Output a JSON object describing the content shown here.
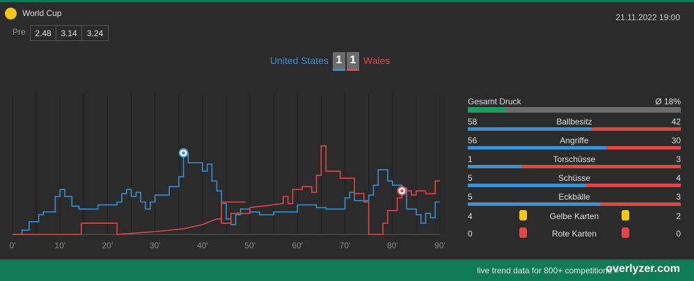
{
  "competition": {
    "name": "World Cup",
    "icon": "yellow-circle-icon"
  },
  "datetime": "21.11.2022 19:00",
  "odds": {
    "label": "Pre",
    "values": [
      "2.48",
      "3.14",
      "3.24"
    ]
  },
  "match": {
    "home": {
      "name": "United States",
      "score": "1",
      "color": "#3b8fd4"
    },
    "away": {
      "name": "Wales",
      "score": "1",
      "color": "#e04848"
    }
  },
  "chart_data": {
    "type": "line",
    "x_ticks": [
      "0'",
      "10'",
      "20'",
      "30'",
      "40'",
      "50'",
      "60'",
      "70'",
      "80'",
      "90'"
    ],
    "xlim": [
      0,
      90
    ],
    "ylim": [
      0,
      100
    ],
    "grid": "vertical",
    "series": [
      {
        "name": "United States",
        "color": "#3b8fd4",
        "points": [
          [
            0,
            0
          ],
          [
            2,
            0
          ],
          [
            2,
            3
          ],
          [
            3.5,
            3
          ],
          [
            3.5,
            9
          ],
          [
            5.5,
            9
          ],
          [
            5.5,
            14
          ],
          [
            6.5,
            14
          ],
          [
            6.5,
            16
          ],
          [
            9,
            16
          ],
          [
            9,
            27
          ],
          [
            10,
            27
          ],
          [
            10,
            32
          ],
          [
            11,
            32
          ],
          [
            11,
            27
          ],
          [
            12.5,
            27
          ],
          [
            12.5,
            20
          ],
          [
            14,
            20
          ],
          [
            14,
            18
          ],
          [
            18,
            18
          ],
          [
            18,
            21
          ],
          [
            22,
            21
          ],
          [
            22,
            23
          ],
          [
            23,
            23
          ],
          [
            23,
            29
          ],
          [
            24,
            29
          ],
          [
            24,
            32
          ],
          [
            25,
            32
          ],
          [
            25,
            27
          ],
          [
            26,
            27
          ],
          [
            26,
            30
          ],
          [
            27,
            30
          ],
          [
            27,
            23
          ],
          [
            28,
            23
          ],
          [
            28,
            18
          ],
          [
            29,
            18
          ],
          [
            29,
            23
          ],
          [
            30,
            23
          ],
          [
            30,
            28
          ],
          [
            33,
            28
          ],
          [
            33,
            34
          ],
          [
            35,
            34
          ],
          [
            35,
            41
          ],
          [
            36,
            41
          ],
          [
            36,
            58
          ],
          [
            37,
            58
          ],
          [
            37,
            51
          ],
          [
            40,
            51
          ],
          [
            40,
            45
          ],
          [
            41,
            45
          ],
          [
            41,
            50
          ],
          [
            42,
            50
          ],
          [
            42,
            38
          ],
          [
            43,
            38
          ],
          [
            43,
            31
          ],
          [
            44,
            31
          ],
          [
            44,
            22
          ],
          [
            45,
            22
          ],
          [
            45,
            11
          ],
          [
            46,
            11
          ],
          [
            46,
            7
          ],
          [
            47,
            7
          ],
          [
            47,
            14
          ],
          [
            48,
            14
          ],
          [
            48,
            18
          ],
          [
            50,
            18
          ],
          [
            50,
            16
          ],
          [
            52,
            16
          ],
          [
            52,
            14
          ],
          [
            55,
            14
          ],
          [
            55,
            16
          ],
          [
            60,
            16
          ],
          [
            60,
            21
          ],
          [
            64,
            21
          ],
          [
            64,
            19
          ],
          [
            66,
            19
          ],
          [
            66,
            18
          ],
          [
            70,
            18
          ],
          [
            70,
            26
          ],
          [
            71,
            26
          ],
          [
            71,
            30
          ],
          [
            72,
            30
          ],
          [
            72,
            24
          ],
          [
            75,
            24
          ],
          [
            75,
            28
          ],
          [
            76,
            28
          ],
          [
            76,
            35
          ],
          [
            77,
            35
          ],
          [
            77,
            46
          ],
          [
            79,
            46
          ],
          [
            79,
            38
          ],
          [
            80,
            38
          ],
          [
            80,
            35
          ],
          [
            82,
            35
          ],
          [
            82,
            33
          ],
          [
            83,
            33
          ],
          [
            83,
            18
          ],
          [
            85,
            18
          ],
          [
            85,
            14
          ],
          [
            86,
            14
          ],
          [
            86,
            8
          ],
          [
            87,
            8
          ],
          [
            87,
            15
          ],
          [
            88,
            15
          ],
          [
            88,
            12
          ],
          [
            89,
            12
          ],
          [
            89,
            23
          ],
          [
            90,
            23
          ]
        ]
      },
      {
        "name": "Wales",
        "color": "#e04848",
        "points": [
          [
            0,
            0
          ],
          [
            14.5,
            0
          ],
          [
            14.5,
            8
          ],
          [
            22,
            8
          ],
          [
            22,
            0
          ],
          [
            30,
            2
          ],
          [
            36,
            4
          ],
          [
            40,
            7
          ],
          [
            43,
            11
          ],
          [
            44,
            11
          ],
          [
            44,
            23
          ],
          [
            49,
            23
          ],
          [
            44,
            23
          ],
          [
            44,
            8
          ],
          [
            46,
            8
          ],
          [
            46,
            15
          ],
          [
            50,
            15
          ],
          [
            50,
            19
          ],
          [
            57,
            22
          ],
          [
            57,
            27
          ],
          [
            58,
            27
          ],
          [
            58,
            22
          ],
          [
            59,
            22
          ],
          [
            59,
            32
          ],
          [
            61,
            32
          ],
          [
            61,
            34
          ],
          [
            63,
            34
          ],
          [
            63,
            30
          ],
          [
            64,
            30
          ],
          [
            64,
            42
          ],
          [
            65,
            42
          ],
          [
            65,
            63
          ],
          [
            66,
            63
          ],
          [
            66,
            45
          ],
          [
            69,
            45
          ],
          [
            69,
            40
          ],
          [
            72,
            40
          ],
          [
            72,
            29
          ],
          [
            74,
            29
          ],
          [
            74,
            23
          ],
          [
            75,
            23
          ],
          [
            75,
            0
          ],
          [
            78,
            0
          ],
          [
            78,
            8
          ],
          [
            79,
            8
          ],
          [
            79,
            17
          ],
          [
            81,
            17
          ],
          [
            81,
            26
          ],
          [
            82,
            26
          ],
          [
            82,
            31
          ],
          [
            84,
            31
          ],
          [
            84,
            28
          ],
          [
            85,
            28
          ],
          [
            85,
            31
          ],
          [
            87,
            31
          ],
          [
            87,
            29
          ],
          [
            89,
            29
          ],
          [
            89,
            38
          ],
          [
            90,
            38
          ]
        ]
      }
    ],
    "goal_markers": [
      {
        "team": "United States",
        "minute": 36,
        "icon": "soccer-ball-icon"
      },
      {
        "team": "Wales",
        "minute": 82,
        "icon": "soccer-ball-icon"
      }
    ]
  },
  "stats": {
    "pressure": {
      "label": "Gesamt Druck",
      "value": "Ø 18%",
      "percent": 18
    },
    "rows": [
      {
        "name": "Ballbesitz",
        "home": "58",
        "away": "42"
      },
      {
        "name": "Angriffe",
        "home": "56",
        "away": "30"
      },
      {
        "name": "Torschüsse",
        "home": "1",
        "away": "3"
      },
      {
        "name": "Schüsse",
        "home": "5",
        "away": "4"
      },
      {
        "name": "Eckbälle",
        "home": "5",
        "away": "3"
      }
    ],
    "cards": [
      {
        "name": "Gelbe Karten",
        "home": "4",
        "away": "2",
        "color": "#f5c518",
        "icon": "yellow-card-icon"
      },
      {
        "name": "Rote Karten",
        "home": "0",
        "away": "0",
        "color": "#e04848",
        "icon": "red-card-icon"
      }
    ]
  },
  "footer": {
    "text": "live trend data for 800+ competitions »",
    "brand": "overlyzer.com"
  }
}
